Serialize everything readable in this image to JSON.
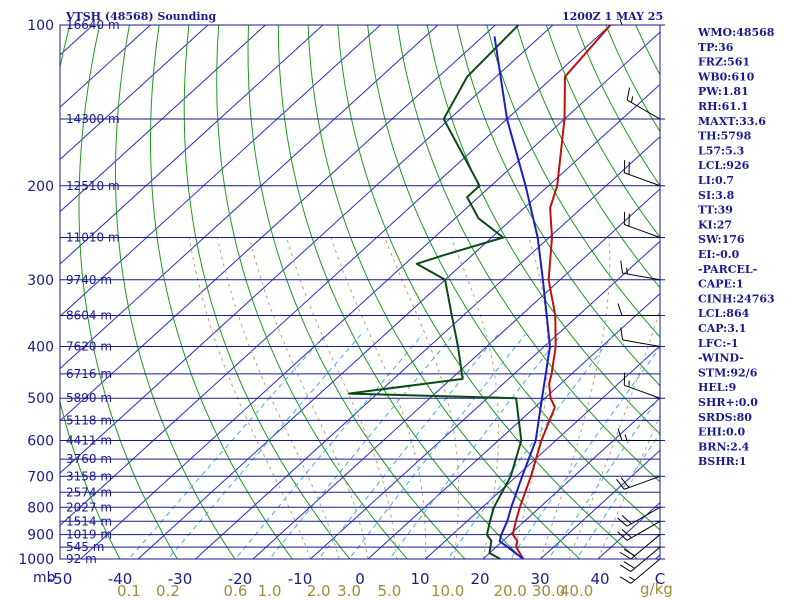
{
  "header": {
    "title": "VTSH (48568) Sounding",
    "time": "1200Z  1 MAY 25"
  },
  "units": {
    "pressure": "mb",
    "mixing_ratio": "g/kg"
  },
  "indices": [
    "WMO:48568",
    "TP:36",
    "FRZ:561",
    "WB0:610",
    "PW:1.81",
    "RH:61.1",
    "MAXT:33.6",
    "TH:5798",
    "L57:5.3",
    "LCL:926",
    "LI:0.7",
    "SI:3.8",
    "TT:39",
    "KI:27",
    "SW:176",
    "EI:-0.0",
    "-PARCEL-",
    "CAPE:1",
    "CINH:24763",
    "LCL:864",
    "CAP:3.1",
    "LFC:-1",
    "-WIND-",
    "STM:92/6",
    "HEL:9",
    "SHR+:0.0",
    "SRDS:80",
    "EHI:0.0",
    "BRN:2.4",
    "BSHR:1"
  ],
  "colors": {
    "axis": "#1a1a8c",
    "isotherm": "#2b2bbd",
    "dry_adiabat": "#1d9a1d",
    "mixing_ratio": "#3fb0d8",
    "moist_adiabat": "#b4a47c",
    "temperature": "#c01010",
    "dewpoint": "#0a4a14",
    "parcel": "#1a20c0"
  },
  "chart_data": {
    "type": "line",
    "title": "VTSH (48568) Sounding",
    "y_axis": {
      "label": "mb",
      "scale": "log",
      "range": [
        1000,
        100
      ],
      "ticks": [
        100,
        200,
        300,
        400,
        500,
        600,
        700,
        800,
        900,
        1000
      ]
    },
    "x_axis": {
      "label": "C",
      "skew": true,
      "range": [
        -50,
        50
      ],
      "ticks": [
        "-50",
        "-40",
        "-30",
        "-20",
        "-10",
        "0",
        "10",
        "20",
        "30",
        "40",
        "C"
      ]
    },
    "mixing_ratio_labels": [
      "0.1",
      "0.2",
      "0.6",
      "1.0",
      "2.0",
      "3.0",
      "5.0",
      "10.0",
      "20.0",
      "30.0",
      "40.0",
      "g/kg"
    ],
    "height_labels": [
      {
        "p": 100,
        "label": "16640 m"
      },
      {
        "p": 150,
        "label": "14300 m"
      },
      {
        "p": 200,
        "label": "12510 m"
      },
      {
        "p": 250,
        "label": "11010 m"
      },
      {
        "p": 300,
        "label": "9740 m"
      },
      {
        "p": 350,
        "label": "8604 m"
      },
      {
        "p": 400,
        "label": "7620 m"
      },
      {
        "p": 450,
        "label": "6716 m"
      },
      {
        "p": 500,
        "label": "5890 m"
      },
      {
        "p": 550,
        "label": "5118 m"
      },
      {
        "p": 600,
        "label": "4411 m"
      },
      {
        "p": 650,
        "label": "3760 m"
      },
      {
        "p": 700,
        "label": "3158 m"
      },
      {
        "p": 750,
        "label": "2574 m"
      },
      {
        "p": 800,
        "label": "2027 m"
      },
      {
        "p": 850,
        "label": "1514 m"
      },
      {
        "p": 900,
        "label": "1019 m"
      },
      {
        "p": 950,
        "label": "545 m"
      },
      {
        "p": 1000,
        "label": "92 m"
      }
    ],
    "series": [
      {
        "key": "temperature",
        "points": [
          [
            1000,
            27
          ],
          [
            950,
            23.5
          ],
          [
            925,
            22.5
          ],
          [
            900,
            20.5
          ],
          [
            850,
            18.5
          ],
          [
            800,
            16.5
          ],
          [
            700,
            12.5
          ],
          [
            600,
            7.5
          ],
          [
            520,
            3.5
          ],
          [
            500,
            1
          ],
          [
            470,
            -2
          ],
          [
            450,
            -3.5
          ],
          [
            400,
            -8
          ],
          [
            350,
            -14
          ],
          [
            300,
            -22
          ],
          [
            250,
            -29.5
          ],
          [
            220,
            -35.5
          ],
          [
            200,
            -38.5
          ],
          [
            150,
            -50
          ],
          [
            125,
            -58
          ],
          [
            100,
            -60
          ]
        ]
      },
      {
        "key": "dewpoint",
        "points": [
          [
            1000,
            23
          ],
          [
            975,
            20
          ],
          [
            925,
            18
          ],
          [
            900,
            16
          ],
          [
            850,
            14
          ],
          [
            800,
            12
          ],
          [
            700,
            9
          ],
          [
            600,
            4
          ],
          [
            500,
            -5
          ],
          [
            490,
            -35
          ],
          [
            460,
            -18
          ],
          [
            400,
            -25
          ],
          [
            350,
            -32
          ],
          [
            300,
            -40
          ],
          [
            280,
            -48
          ],
          [
            270,
            -45
          ],
          [
            250,
            -38
          ],
          [
            230,
            -46
          ],
          [
            210,
            -52
          ],
          [
            200,
            -52
          ],
          [
            150,
            -71
          ],
          [
            125,
            -75
          ],
          [
            100,
            -76
          ]
        ]
      },
      {
        "key": "parcel",
        "points": [
          [
            1000,
            27
          ],
          [
            950,
            22
          ],
          [
            926,
            19.5
          ],
          [
            900,
            18.5
          ],
          [
            850,
            17
          ],
          [
            800,
            15
          ],
          [
            700,
            11
          ],
          [
            600,
            6.5
          ],
          [
            500,
            -0.5
          ],
          [
            400,
            -9
          ],
          [
            300,
            -23
          ],
          [
            250,
            -32
          ],
          [
            200,
            -44
          ],
          [
            150,
            -60
          ],
          [
            105,
            -78
          ]
        ]
      }
    ],
    "wind_barbs": [
      {
        "p": 100,
        "dir": 270,
        "spd": 5
      },
      {
        "p": 150,
        "dir": 300,
        "spd": 15
      },
      {
        "p": 200,
        "dir": 290,
        "spd": 20
      },
      {
        "p": 250,
        "dir": 290,
        "spd": 20
      },
      {
        "p": 300,
        "dir": 280,
        "spd": 15
      },
      {
        "p": 350,
        "dir": 270,
        "spd": 10
      },
      {
        "p": 400,
        "dir": 280,
        "spd": 10
      },
      {
        "p": 500,
        "dir": 290,
        "spd": 15
      },
      {
        "p": 600,
        "dir": 270,
        "spd": 15
      },
      {
        "p": 700,
        "dir": 250,
        "spd": 20
      },
      {
        "p": 800,
        "dir": 240,
        "spd": 20
      },
      {
        "p": 850,
        "dir": 240,
        "spd": 20
      },
      {
        "p": 900,
        "dir": 230,
        "spd": 20
      },
      {
        "p": 950,
        "dir": 230,
        "spd": 20
      },
      {
        "p": 1000,
        "dir": 230,
        "spd": 15
      }
    ]
  }
}
